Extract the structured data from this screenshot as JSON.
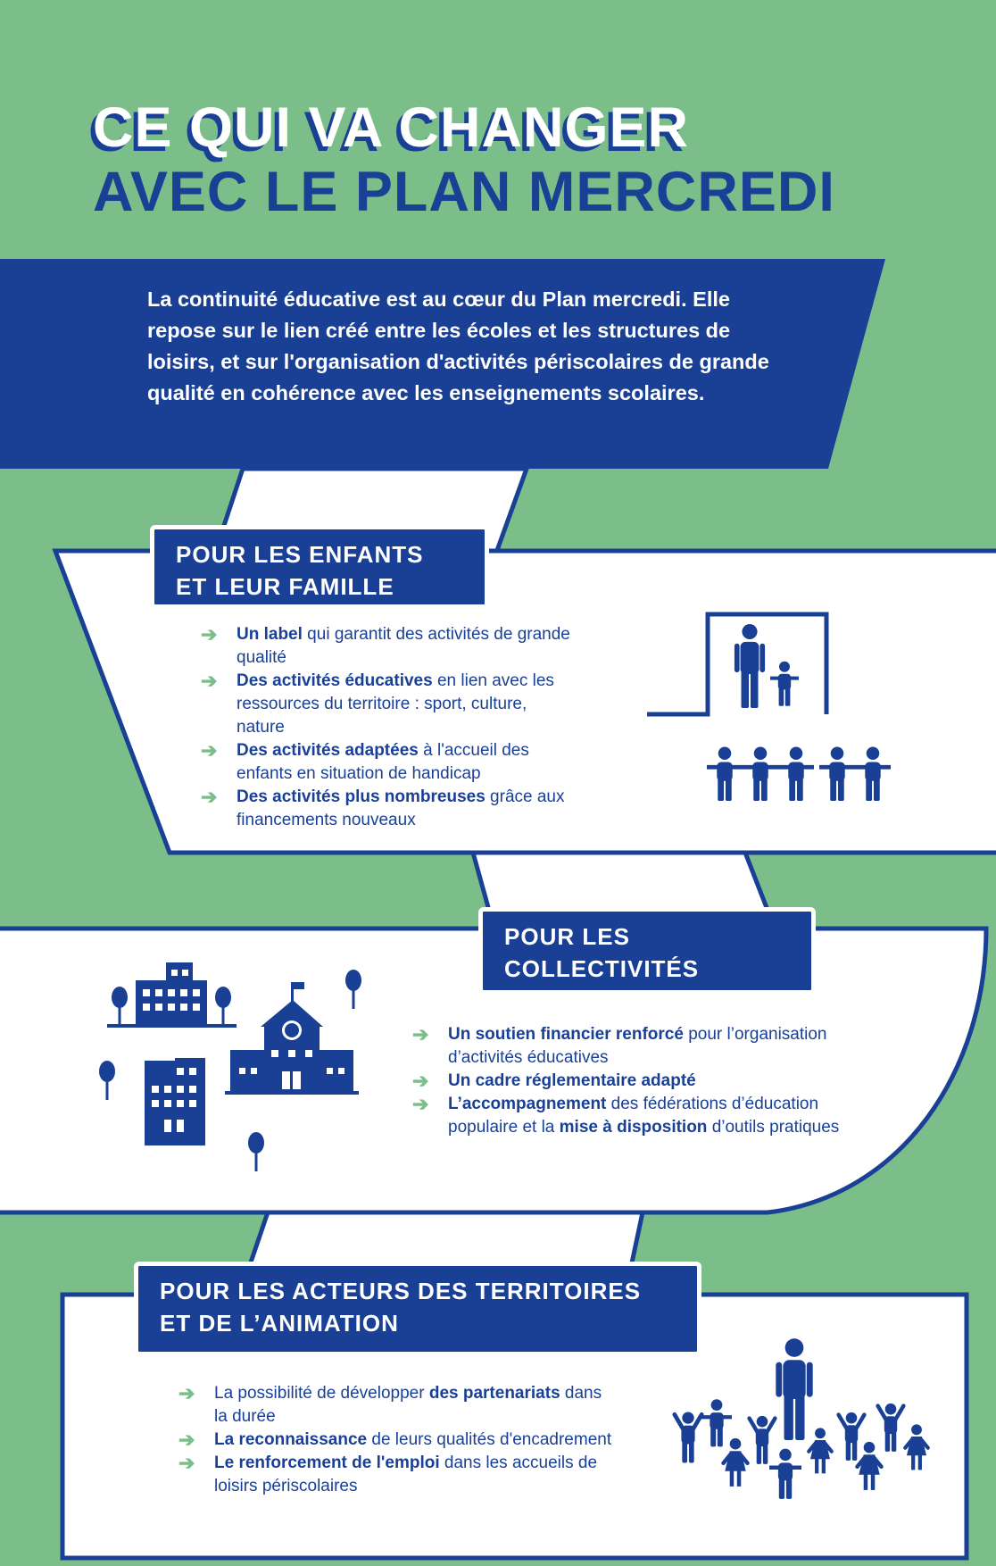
{
  "title": {
    "line1": "CE QUI VA CHANGER",
    "line2": "AVEC LE PLAN MERCREDI"
  },
  "intro": "La continuité éducative est au cœur du Plan mercredi. Elle repose sur le lien créé entre les écoles et les structures de loisirs, et sur l'organisation d'activités périscolaires de grande qualité en cohérence avec les enseignements scolaires.",
  "colors": {
    "green": "#7bbe89",
    "blue": "#1a4096",
    "white": "#ffffff"
  },
  "sections": [
    {
      "heading": [
        "POUR LES ENFANTS",
        "ET LEUR FAMILLE"
      ],
      "icons": [
        "parent-child-door-icon",
        "children-holding-hands-icon"
      ],
      "items": [
        [
          {
            "b": true,
            "t": "Un label"
          },
          {
            "b": false,
            "t": " qui garantit des activités de grande qualité"
          }
        ],
        [
          {
            "b": true,
            "t": "Des activités éducatives"
          },
          {
            "b": false,
            "t": " en lien avec les ressources du territoire : sport, culture, nature"
          }
        ],
        [
          {
            "b": true,
            "t": "Des activités adaptées"
          },
          {
            "b": false,
            "t": " à l'accueil des enfants en situation de handicap"
          }
        ],
        [
          {
            "b": true,
            "t": "Des activités plus nombreuses"
          },
          {
            "b": false,
            "t": " grâce aux financements nouveaux"
          }
        ]
      ]
    },
    {
      "heading": [
        "POUR LES",
        "COLLECTIVITÉS"
      ],
      "icons": [
        "city-buildings-icon",
        "school-icon",
        "tree-icon"
      ],
      "items": [
        [
          {
            "b": true,
            "t": "Un soutien financier renforcé"
          },
          {
            "b": false,
            "t": " pour l’organisation d’activités éducatives"
          }
        ],
        [
          {
            "b": true,
            "t": "Un cadre réglementaire adapté"
          }
        ],
        [
          {
            "b": true,
            "t": "L’accompagnement"
          },
          {
            "b": false,
            "t": " des fédérations d’éducation populaire et la "
          },
          {
            "b": true,
            "t": "mise à disposition"
          },
          {
            "b": false,
            "t": " d’outils pratiques"
          }
        ]
      ]
    },
    {
      "heading": [
        "POUR LES ACTEURS DES TERRITOIRES",
        "ET DE L’ANIMATION"
      ],
      "icons": [
        "animator-with-children-icon"
      ],
      "items": [
        [
          {
            "b": false,
            "t": "La possibilité de développer "
          },
          {
            "b": true,
            "t": "des partenariats"
          },
          {
            "b": false,
            "t": " dans la durée"
          }
        ],
        [
          {
            "b": true,
            "t": "La reconnaissance"
          },
          {
            "b": false,
            "t": " de leurs qualités d'encadrement"
          }
        ],
        [
          {
            "b": true,
            "t": "Le renforcement de l'emploi"
          },
          {
            "b": false,
            "t": " dans les accueils de loisirs périscolaires"
          }
        ]
      ]
    }
  ]
}
